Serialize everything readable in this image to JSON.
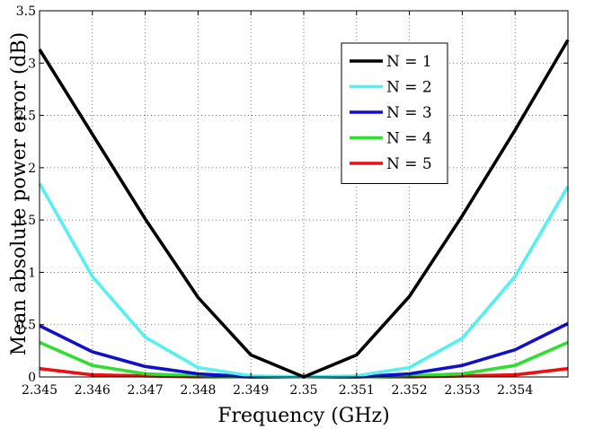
{
  "chart_data": {
    "type": "line",
    "title": "",
    "xlabel": "Frequency (GHz)",
    "ylabel": "Mean absolute power error (dB)",
    "xlim": [
      2.345,
      2.355
    ],
    "ylim": [
      0,
      3.5
    ],
    "xticks": [
      2.345,
      2.346,
      2.347,
      2.348,
      2.349,
      2.35,
      2.351,
      2.352,
      2.353,
      2.354
    ],
    "xtick_labels": [
      "2.345",
      "2.346",
      "2.347",
      "2.348",
      "2.349",
      "2.35",
      "2.351",
      "2.352",
      "2.353",
      "2.354"
    ],
    "yticks": [
      0,
      0.5,
      1,
      1.5,
      2,
      2.5,
      3,
      3.5
    ],
    "ytick_labels": [
      "0",
      "0.5",
      "1",
      "1.5",
      "2",
      "2.5",
      "3",
      "3.5"
    ],
    "grid": true,
    "legend_position": "top-right",
    "x": [
      2.345,
      2.346,
      2.347,
      2.348,
      2.349,
      2.35,
      2.351,
      2.352,
      2.353,
      2.354,
      2.355
    ],
    "series": [
      {
        "name": "N = 1",
        "color": "#000000",
        "values": [
          3.13,
          2.32,
          1.51,
          0.76,
          0.21,
          0.0,
          0.21,
          0.77,
          1.54,
          2.36,
          3.22
        ]
      },
      {
        "name": "N = 2",
        "color": "#55f0f0",
        "values": [
          1.85,
          0.96,
          0.38,
          0.09,
          0.01,
          0.0,
          0.01,
          0.09,
          0.37,
          0.96,
          1.82
        ]
      },
      {
        "name": "N = 3",
        "color": "#1010cc",
        "values": [
          0.49,
          0.24,
          0.1,
          0.03,
          0.0,
          0.0,
          0.0,
          0.03,
          0.11,
          0.26,
          0.51
        ]
      },
      {
        "name": "N = 4",
        "color": "#30dd30",
        "values": [
          0.33,
          0.11,
          0.03,
          0.01,
          0.0,
          0.0,
          0.0,
          0.01,
          0.03,
          0.11,
          0.33
        ]
      },
      {
        "name": "N = 5",
        "color": "#ee1010",
        "values": [
          0.08,
          0.02,
          0.01,
          0.0,
          0.0,
          0.0,
          0.0,
          0.0,
          0.01,
          0.02,
          0.08
        ]
      }
    ]
  }
}
